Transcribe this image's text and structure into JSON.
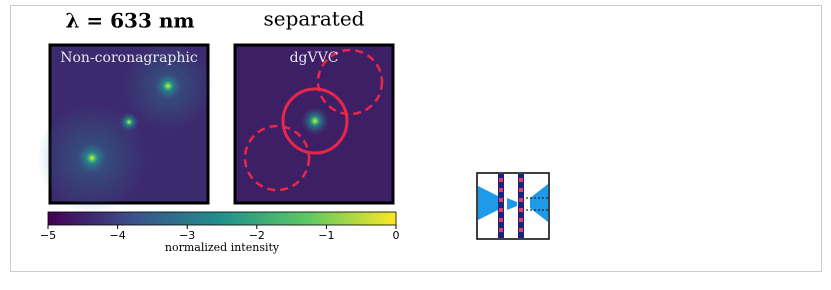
{
  "figure": {
    "title_left": "λ = 633 nm",
    "title_right": "separated",
    "panels": [
      {
        "label": "Non-coronagraphic"
      },
      {
        "label": "dgVVC"
      }
    ],
    "colorbar": {
      "label": "normalized intensity",
      "lim": [
        -5,
        0
      ],
      "ticks": [
        {
          "value": -5,
          "label": "−5"
        },
        {
          "value": -4,
          "label": "−4"
        },
        {
          "value": -3,
          "label": "−3"
        },
        {
          "value": -2,
          "label": "−2"
        },
        {
          "value": -1,
          "label": "−1"
        },
        0
      ]
    }
  }
}
